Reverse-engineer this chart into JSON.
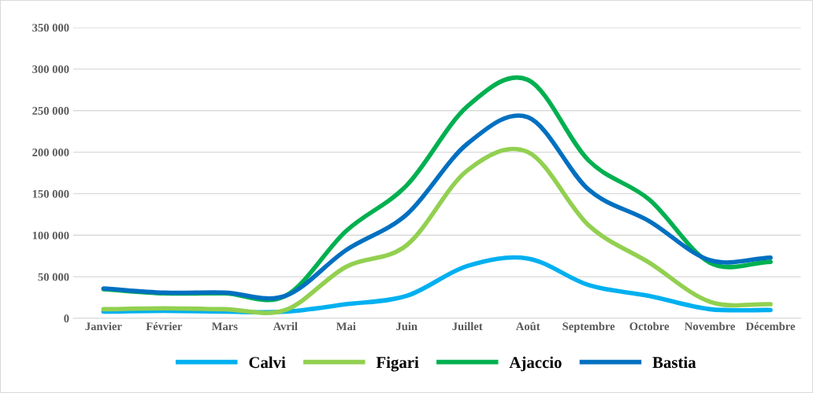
{
  "chart_data": {
    "type": "line",
    "categories": [
      "Janvier",
      "Février",
      "Mars",
      "Avril",
      "Mai",
      "Juin",
      "Juillet",
      "Août",
      "Septembre",
      "Octobre",
      "Novembre",
      "Décembre"
    ],
    "series": [
      {
        "name": "Calvi",
        "color": "#00b0f0",
        "values": [
          8000,
          9000,
          8000,
          8000,
          17000,
          27000,
          63000,
          72000,
          40000,
          27000,
          11000,
          10000
        ]
      },
      {
        "name": "Figari",
        "color": "#92d050",
        "values": [
          11000,
          12000,
          11000,
          10000,
          62000,
          88000,
          178000,
          200000,
          112000,
          67000,
          20000,
          17000
        ]
      },
      {
        "name": "Ajaccio",
        "color": "#00b050",
        "values": [
          35000,
          30000,
          30000,
          27000,
          105000,
          160000,
          255000,
          287000,
          190000,
          143000,
          67000,
          68000
        ]
      },
      {
        "name": "Bastia",
        "color": "#0070c0",
        "values": [
          36000,
          31000,
          31000,
          27000,
          82000,
          125000,
          210000,
          242000,
          155000,
          117000,
          70000,
          73000
        ]
      }
    ],
    "ylim": [
      0,
      350000
    ],
    "yticks": [
      {
        "value": 0,
        "label": "0"
      },
      {
        "value": 50000,
        "label": "50 000"
      },
      {
        "value": 100000,
        "label": "100 000"
      },
      {
        "value": 150000,
        "label": "150 000"
      },
      {
        "value": 200000,
        "label": "200 000"
      },
      {
        "value": 250000,
        "label": "250 000"
      },
      {
        "value": 300000,
        "label": "300 000"
      },
      {
        "value": 350000,
        "label": "350 000"
      }
    ],
    "grid": "y",
    "legend": "bottom",
    "marker": "none",
    "line_style": "solid"
  }
}
